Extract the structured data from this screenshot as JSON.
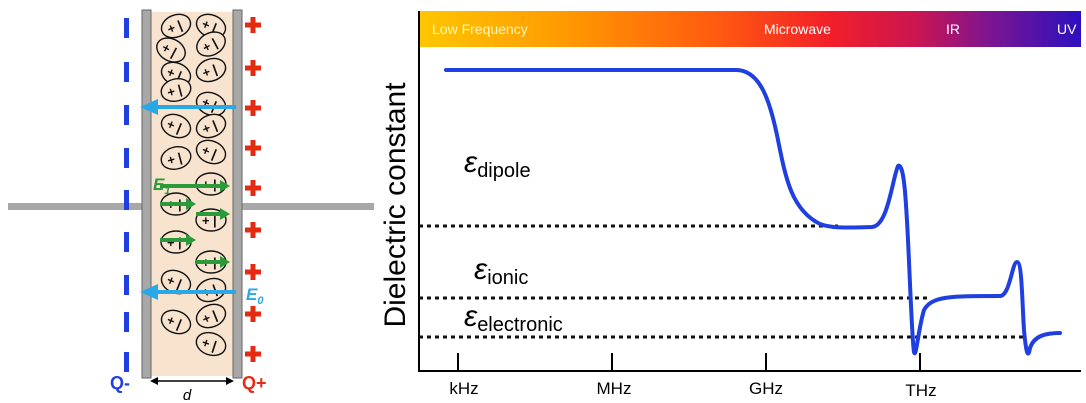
{
  "capacitor": {
    "neg_label": "Q-",
    "pos_label": "Q+",
    "gap_label": "d",
    "field_induced_label": "E",
    "field_induced_sub": "1",
    "field_applied_label": "E",
    "field_applied_sub": "0",
    "plus_sign": "+",
    "minus_sign": "−"
  },
  "spectrum": {
    "bands": [
      "Low Frequency",
      "Microwave",
      "IR",
      "UV"
    ]
  },
  "plot": {
    "ylabel": "Dielectric constant",
    "xticks": [
      "kHz",
      "MHz",
      "GHz",
      "THz"
    ],
    "levels": {
      "dipole": {
        "symbol": "ε",
        "sub": "dipole"
      },
      "ionic": {
        "symbol": "ε",
        "sub": "ionic"
      },
      "electronic": {
        "symbol": "ε",
        "sub": "electronic"
      }
    }
  },
  "colors": {
    "curve": "#1f3fe0",
    "dotted": "#111111",
    "plate": "#a8a8a8",
    "dielectric_fill": "#f8e3cf",
    "neg_sign": "#1f3fe0",
    "pos_sign": "#e52a12",
    "applied_field_arrow": "#2aa8e6",
    "induced_field_arrow": "#2a9a3a"
  }
}
